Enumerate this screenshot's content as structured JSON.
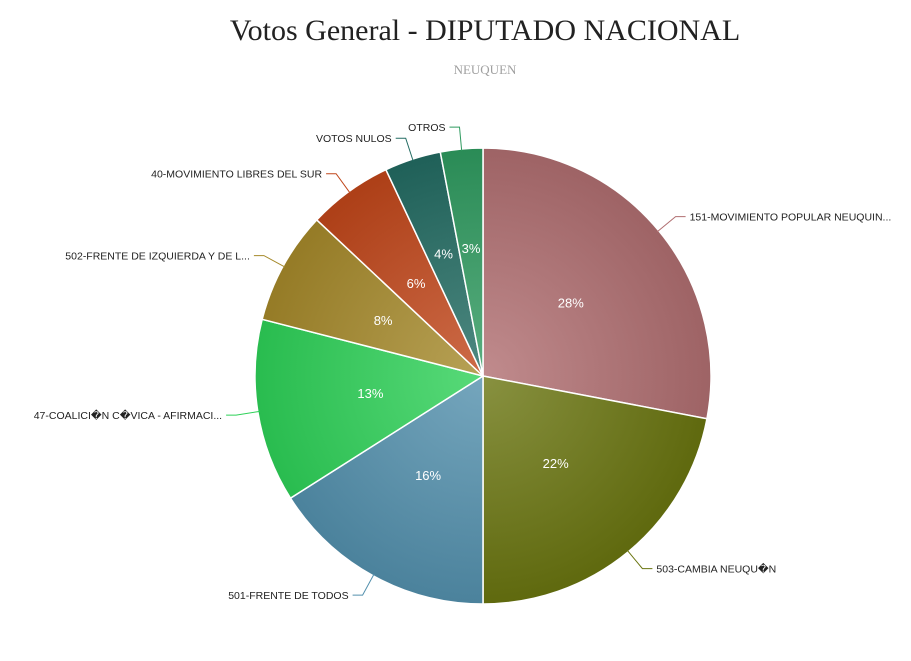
{
  "chart_data": {
    "type": "pie",
    "title": "Votos General - DIPUTADO NACIONAL",
    "subtitle": "NEUQUEN",
    "slices": [
      {
        "label": "151-MOVIMIENTO POPULAR NEUQUIN...",
        "value": 28,
        "pct_label": "28%",
        "color": "#b06e70"
      },
      {
        "label": "503-CAMBIA NEUQU�N",
        "value": 22,
        "pct_label": "22%",
        "color": "#6a7510"
      },
      {
        "label": "501-FRENTE DE TODOS",
        "value": 16,
        "pct_label": "16%",
        "color": "#5390ad"
      },
      {
        "label": "47-COALICI�N C�VICA - AFIRMACI...",
        "value": 13,
        "pct_label": "13%",
        "color": "#2ed158"
      },
      {
        "label": "502-FRENTE DE IZQUIERDA Y DE L...",
        "value": 8,
        "pct_label": "8%",
        "color": "#a5892a"
      },
      {
        "label": "40-MOVIMIENTO LIBRES DEL SUR",
        "value": 6,
        "pct_label": "6%",
        "color": "#c0461a"
      },
      {
        "label": "VOTOS NULOS",
        "value": 4,
        "pct_label": "4%",
        "color": "#226b62"
      },
      {
        "label": "OTROS",
        "value": 3,
        "pct_label": "3%",
        "color": "#2f9a5f"
      }
    ]
  }
}
